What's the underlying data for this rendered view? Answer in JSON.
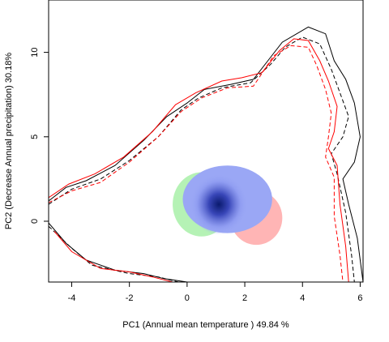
{
  "chart_data": {
    "type": "density-envelope",
    "xlabel": "PC1 (Annual mean temperature ) 49.84 %",
    "ylabel": "PC2 (Decrease Annual precipitation) 30.18%",
    "xlim": [
      -4.8,
      6.1
    ],
    "ylim": [
      -3.6,
      13.1
    ],
    "x_ticks": [
      -4,
      -2,
      0,
      2,
      4,
      6
    ],
    "y_ticks": [
      0,
      5,
      10
    ],
    "x_tick_labels": [
      "-4",
      "-2",
      "0",
      "2",
      "4",
      "6"
    ],
    "y_tick_labels": [
      "0",
      "5",
      "10"
    ],
    "grid": false,
    "legend": "none",
    "density_peak": {
      "x": 1.1,
      "y": 1.0
    },
    "regions": [
      {
        "kind": "overlap",
        "color": "#9aa7f5",
        "cx": 1.4,
        "cy": 1.3,
        "rx": 1.55,
        "ry": 2.0
      },
      {
        "kind": "green-only",
        "color": "#b5f2b5",
        "cx": 0.5,
        "cy": 1.0,
        "rx": 1.0,
        "ry": 1.9
      },
      {
        "kind": "red-only",
        "color": "#ffb5b5",
        "cx": 2.4,
        "cy": 0.2,
        "rx": 0.9,
        "ry": 1.6
      }
    ],
    "envelopes": [
      {
        "color": "#000000",
        "dash": "solid",
        "points": [
          [
            -4.8,
            1.2
          ],
          [
            -4.2,
            2.0
          ],
          [
            -3.5,
            2.4
          ],
          [
            -2.5,
            3.3
          ],
          [
            -1.5,
            4.8
          ],
          [
            -0.7,
            6.2
          ],
          [
            0.0,
            7.0
          ],
          [
            0.6,
            7.8
          ],
          [
            1.5,
            8.1
          ],
          [
            2.3,
            8.4
          ],
          [
            2.8,
            9.5
          ],
          [
            3.3,
            10.6
          ],
          [
            4.2,
            11.5
          ],
          [
            4.8,
            11.1
          ],
          [
            5.1,
            9.5
          ],
          [
            5.5,
            8.4
          ],
          [
            5.8,
            7.0
          ],
          [
            6.0,
            5.0
          ],
          [
            5.8,
            3.5
          ],
          [
            5.4,
            2.5
          ],
          [
            5.6,
            1.0
          ],
          [
            5.9,
            -1.0
          ],
          [
            6.1,
            -3.6
          ]
        ]
      },
      {
        "color": "#000000",
        "dash": "dashed",
        "points": [
          [
            -4.8,
            1.0
          ],
          [
            -4.0,
            1.9
          ],
          [
            -3.0,
            2.5
          ],
          [
            -2.0,
            3.6
          ],
          [
            -1.0,
            5.0
          ],
          [
            -0.2,
            6.6
          ],
          [
            0.4,
            7.3
          ],
          [
            1.2,
            7.9
          ],
          [
            2.2,
            8.2
          ],
          [
            2.9,
            9.3
          ],
          [
            3.4,
            10.3
          ],
          [
            4.0,
            10.9
          ],
          [
            4.6,
            10.5
          ],
          [
            5.0,
            9.0
          ],
          [
            5.3,
            7.6
          ],
          [
            5.6,
            6.2
          ],
          [
            5.4,
            5.0
          ],
          [
            5.0,
            4.0
          ],
          [
            5.2,
            2.8
          ],
          [
            5.5,
            0.5
          ],
          [
            5.7,
            -2.0
          ],
          [
            5.8,
            -3.6
          ]
        ]
      },
      {
        "color": "#ff0000",
        "dash": "solid",
        "points": [
          [
            -4.8,
            1.4
          ],
          [
            -4.1,
            2.2
          ],
          [
            -3.2,
            2.8
          ],
          [
            -2.2,
            3.8
          ],
          [
            -1.2,
            5.3
          ],
          [
            -0.4,
            6.9
          ],
          [
            0.3,
            7.6
          ],
          [
            1.2,
            8.3
          ],
          [
            1.9,
            8.5
          ],
          [
            2.6,
            8.8
          ],
          [
            3.2,
            10.1
          ],
          [
            3.7,
            10.8
          ],
          [
            4.2,
            10.7
          ],
          [
            4.6,
            9.5
          ],
          [
            4.9,
            8.3
          ],
          [
            5.2,
            6.8
          ],
          [
            5.1,
            5.3
          ],
          [
            4.9,
            4.3
          ],
          [
            5.2,
            3.3
          ],
          [
            5.3,
            1.0
          ],
          [
            5.5,
            -1.5
          ],
          [
            5.6,
            -3.6
          ]
        ]
      },
      {
        "color": "#ff0000",
        "dash": "dashed",
        "points": [
          [
            -4.8,
            1.1
          ],
          [
            -4.0,
            1.8
          ],
          [
            -3.0,
            2.3
          ],
          [
            -2.0,
            3.5
          ],
          [
            -1.0,
            5.0
          ],
          [
            -0.2,
            6.5
          ],
          [
            0.5,
            7.3
          ],
          [
            1.4,
            7.9
          ],
          [
            2.3,
            8.0
          ],
          [
            3.0,
            9.8
          ],
          [
            3.6,
            10.4
          ],
          [
            4.2,
            10.3
          ],
          [
            4.5,
            9.2
          ],
          [
            4.8,
            7.8
          ],
          [
            5.0,
            6.4
          ],
          [
            4.9,
            5.0
          ],
          [
            4.8,
            3.8
          ],
          [
            5.1,
            2.6
          ],
          [
            5.1,
            0.3
          ],
          [
            5.3,
            -2.0
          ],
          [
            5.4,
            -3.6
          ]
        ]
      },
      {
        "color": "#000000",
        "dash": "solid",
        "points": [
          [
            -4.8,
            -0.1
          ],
          [
            -4.2,
            -1.3
          ],
          [
            -3.5,
            -2.3
          ],
          [
            -2.5,
            -2.9
          ],
          [
            -1.5,
            -3.1
          ],
          [
            -0.8,
            -3.4
          ],
          [
            0.0,
            -3.6
          ]
        ]
      },
      {
        "color": "#000000",
        "dash": "dashed",
        "points": [
          [
            -4.8,
            -0.3
          ],
          [
            -4.0,
            -1.6
          ],
          [
            -3.3,
            -2.6
          ],
          [
            -2.0,
            -3.1
          ],
          [
            -1.0,
            -3.3
          ],
          [
            -0.3,
            -3.6
          ]
        ]
      },
      {
        "color": "#ff0000",
        "dash": "solid",
        "points": [
          [
            -4.6,
            -0.6
          ],
          [
            -4.0,
            -1.8
          ],
          [
            -3.0,
            -2.8
          ],
          [
            -2.0,
            -3.0
          ],
          [
            -1.2,
            -3.3
          ],
          [
            -0.5,
            -3.6
          ]
        ]
      }
    ]
  }
}
